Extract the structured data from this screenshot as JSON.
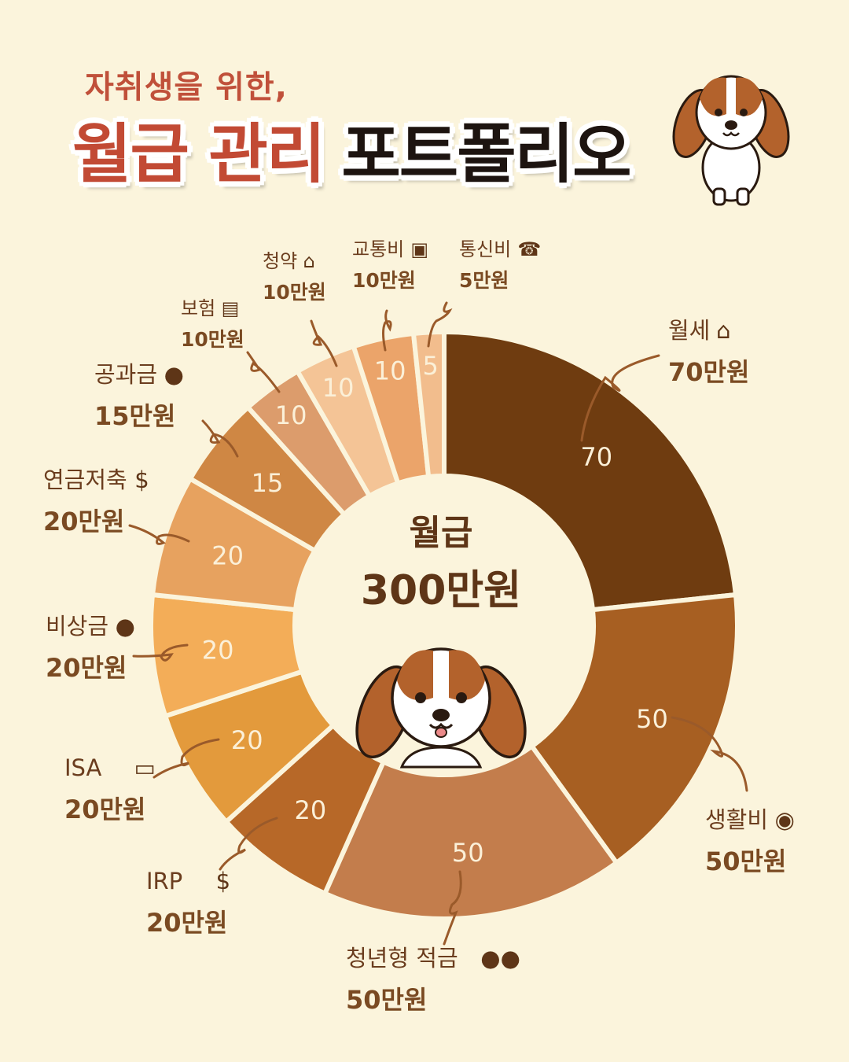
{
  "header": {
    "subtitle": "자취생을 위한,",
    "title_part1": "월급 관리",
    "title_part2": "포트폴리오"
  },
  "center": {
    "line1": "월급",
    "line2": "300만원"
  },
  "colors": {
    "background": "#fbf4dc",
    "label_text": "#6b3d1e",
    "value_label_text": "#7a4a22",
    "slice_text": "#fbf0d8",
    "title_red": "#c24a34"
  },
  "chart_data": {
    "type": "pie",
    "donut": true,
    "total": 300,
    "slices": [
      {
        "label": "월세",
        "slice_label": "70",
        "amount_label": "70만원",
        "value": 70,
        "icon": "house-icon",
        "color": "#6f3c10"
      },
      {
        "label": "생활비",
        "slice_label": "50",
        "amount_label": "50만원",
        "value": 50,
        "icon": "money-bag-icon",
        "color": "#a75f22"
      },
      {
        "label": "청년형 적금",
        "slice_label": "50",
        "amount_label": "50만원",
        "value": 50,
        "icon": "users-icon",
        "color": "#c37d4c"
      },
      {
        "label": "IRP",
        "slice_label": "20",
        "amount_label": "20만원",
        "value": 20,
        "icon": "dollar-badge-icon",
        "color": "#b76828"
      },
      {
        "label": "ISA",
        "slice_label": "20",
        "amount_label": "20만원",
        "value": 20,
        "icon": "banknote-icon",
        "color": "#e39a3c"
      },
      {
        "label": "비상금",
        "slice_label": "20",
        "amount_label": "20만원",
        "value": 20,
        "icon": "piggy-bank-icon",
        "color": "#f3ad58"
      },
      {
        "label": "연금저축",
        "slice_label": "20",
        "amount_label": "20만원",
        "value": 20,
        "icon": "money-sack-icon",
        "color": "#e7a25f"
      },
      {
        "label": "공과금",
        "slice_label": "15",
        "amount_label": "15만원",
        "value": 15,
        "icon": "drop-icon",
        "color": "#cf8744"
      },
      {
        "label": "보험",
        "slice_label": "10",
        "amount_label": "10만원",
        "value": 10,
        "icon": "id-card-icon",
        "color": "#dc9c6c"
      },
      {
        "label": "청약",
        "slice_label": "10",
        "amount_label": "10만원",
        "value": 10,
        "icon": "house-outline-icon",
        "color": "#f4c496"
      },
      {
        "label": "교통비",
        "slice_label": "10",
        "amount_label": "10만원",
        "value": 10,
        "icon": "bus-icon",
        "color": "#eba46a"
      },
      {
        "label": "통신비",
        "slice_label": "5",
        "amount_label": "5만원",
        "value": 5,
        "icon": "phone-icon",
        "color": "#f2bd8d"
      }
    ]
  }
}
